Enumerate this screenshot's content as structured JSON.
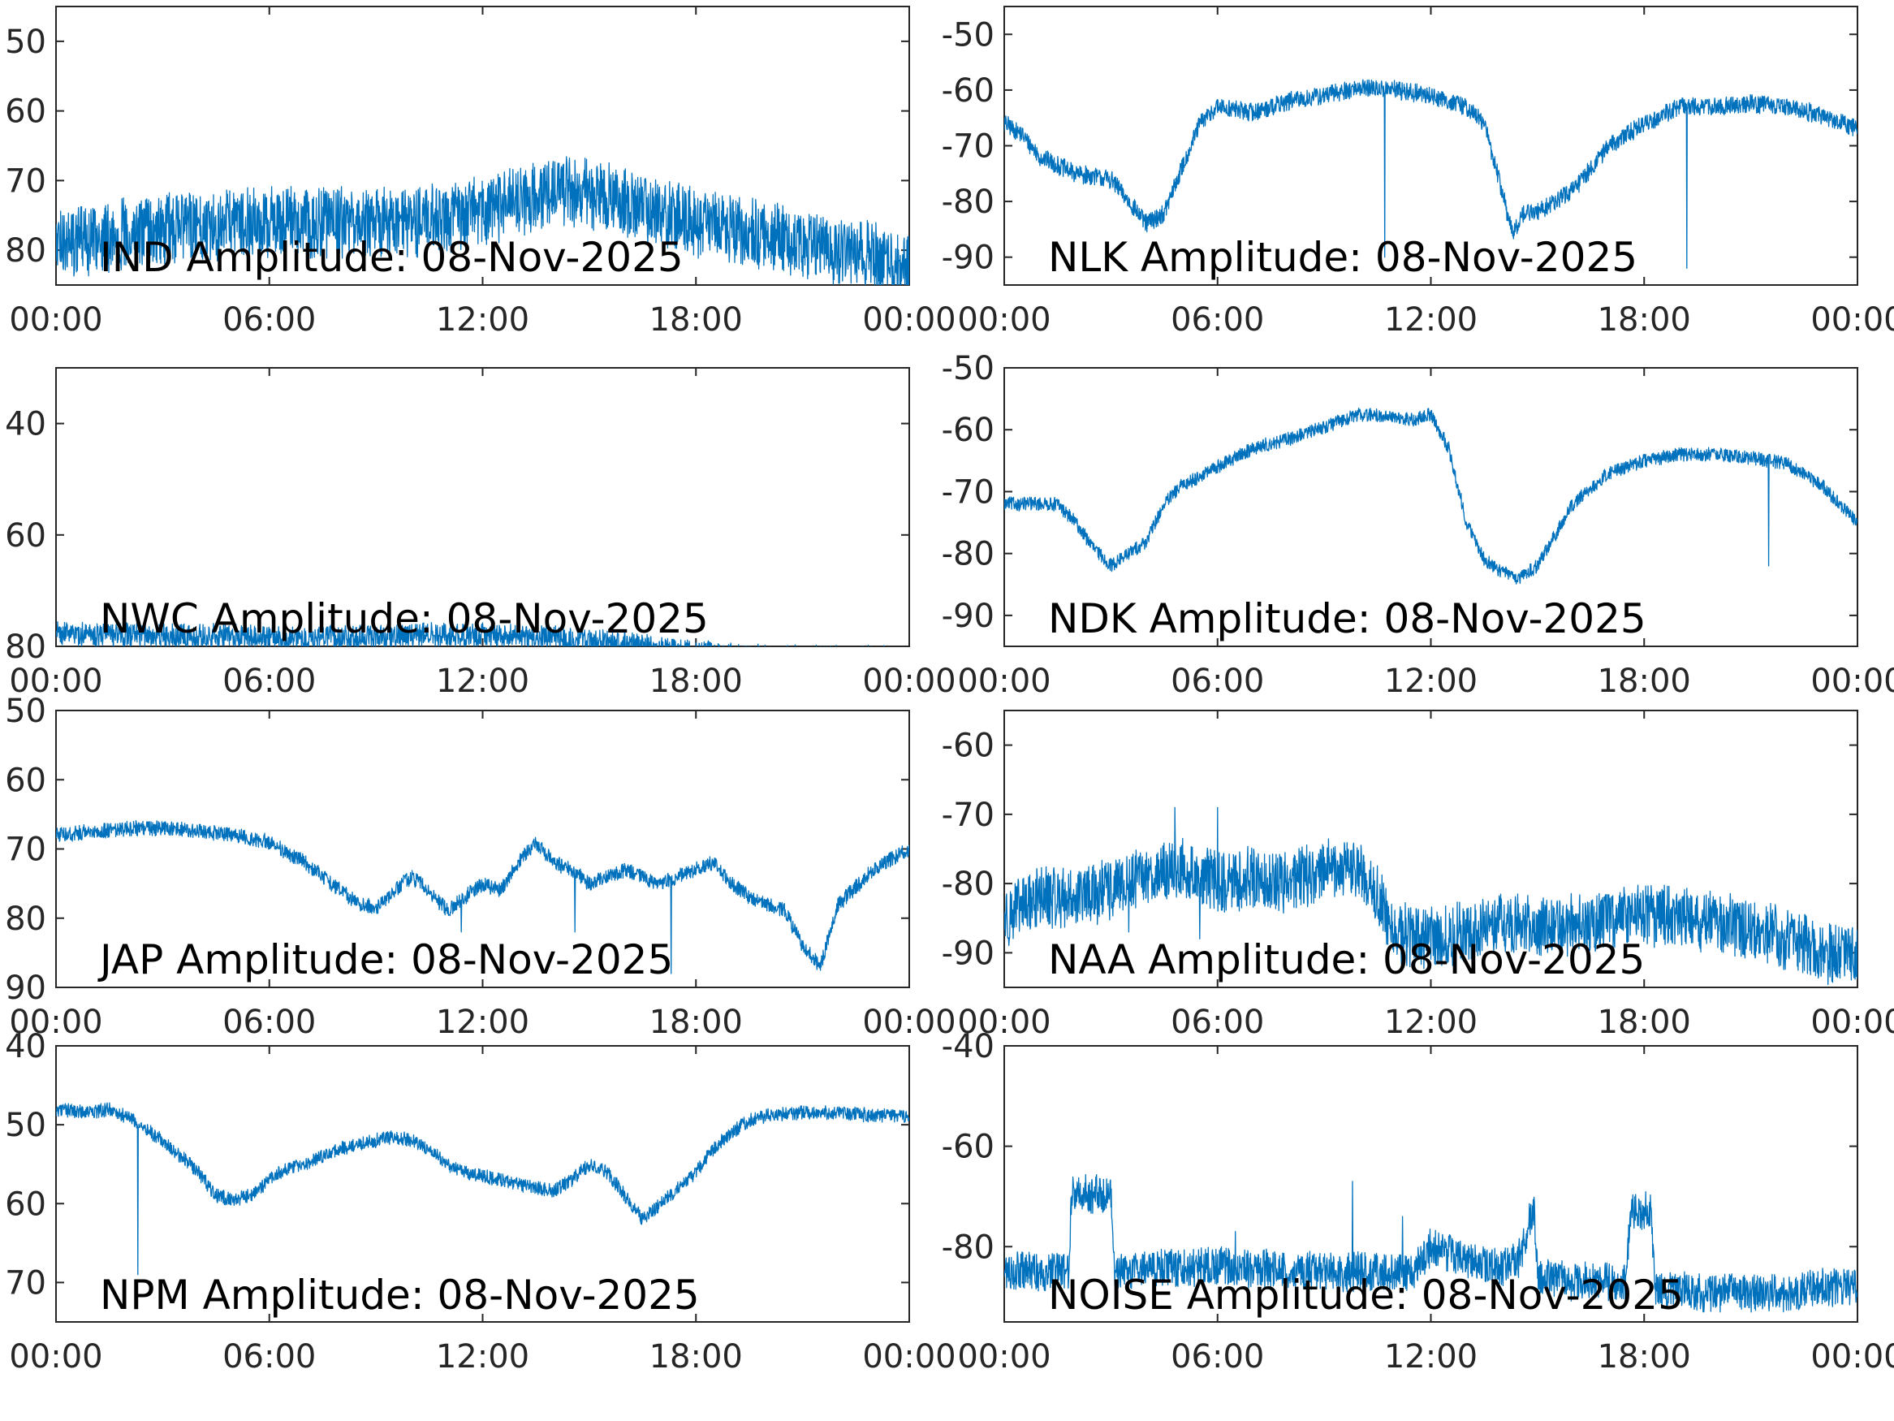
{
  "figure": {
    "trace_color": "#0072BD",
    "axis_color": "#262626"
  },
  "chart_data": [
    {
      "type": "line",
      "label": "IND Amplitude: 08-Nov-2025",
      "x_ticks": [
        "00:00",
        "06:00",
        "12:00",
        "18:00",
        "00:00"
      ],
      "y_ticks": [
        50,
        60,
        70,
        80
      ],
      "ylim": [
        45,
        85
      ],
      "y_inverted": true,
      "tick_sign": "",
      "noise": 9,
      "x": [
        0,
        1,
        2,
        3,
        4,
        6,
        8,
        10,
        12,
        13,
        14,
        14.5,
        15,
        16,
        17,
        18,
        19,
        20,
        21,
        22,
        23,
        23.5,
        24
      ],
      "y": [
        79,
        78.5,
        77.5,
        77,
        76.5,
        76,
        76,
        76,
        74.5,
        73,
        72,
        71.5,
        72,
        73,
        75,
        76,
        77,
        78,
        79,
        80,
        81,
        82,
        83
      ]
    },
    {
      "type": "line",
      "label": "NLK Amplitude: 08-Nov-2025",
      "x_ticks": [
        "00:00",
        "06:00",
        "12:00",
        "18:00",
        "00:00"
      ],
      "y_ticks": [
        -50,
        -60,
        -70,
        -80,
        -90
      ],
      "ylim": [
        -45,
        -95
      ],
      "y_inverted": false,
      "tick_sign": "",
      "noise": 3,
      "spikes": [
        [
          10.7,
          -90
        ],
        [
          19.2,
          -92
        ]
      ],
      "x": [
        0,
        0.5,
        1,
        2,
        3,
        3.5,
        4,
        4.5,
        5,
        5.5,
        6,
        7,
        8,
        9,
        10,
        11,
        12,
        13,
        13.5,
        14,
        14.3,
        14.6,
        15,
        16,
        17,
        18,
        19,
        20,
        21,
        22,
        23,
        24
      ],
      "y": [
        -66,
        -68,
        -72,
        -75,
        -76,
        -80,
        -84,
        -82,
        -74,
        -66,
        -63,
        -64,
        -62,
        -61,
        -59.5,
        -60,
        -61,
        -63,
        -66,
        -78,
        -86,
        -82,
        -82,
        -78,
        -70,
        -66,
        -63,
        -63,
        -62.5,
        -63,
        -64.5,
        -67
      ]
    },
    {
      "type": "line",
      "label": "NWC Amplitude: 08-Nov-2025",
      "x_ticks": [
        "00:00",
        "06:00",
        "12:00",
        "18:00",
        "00:00"
      ],
      "y_ticks": [
        40,
        60,
        80
      ],
      "ylim": [
        30,
        80
      ],
      "y_inverted": true,
      "tick_sign": "",
      "noise": 4,
      "clip": true,
      "x": [
        0,
        2,
        4,
        6,
        8,
        10,
        12,
        14,
        15,
        16,
        17,
        18,
        20,
        22,
        24
      ],
      "y": [
        77.5,
        78,
        78,
        78.5,
        78.5,
        78,
        78,
        78.5,
        79,
        79.5,
        80.5,
        81,
        82,
        82,
        82
      ]
    },
    {
      "type": "line",
      "label": "NDK Amplitude: 08-Nov-2025",
      "x_ticks": [
        "00:00",
        "06:00",
        "12:00",
        "18:00",
        "00:00"
      ],
      "y_ticks": [
        -50,
        -60,
        -70,
        -80,
        -90
      ],
      "ylim": [
        -50,
        -95
      ],
      "y_inverted": false,
      "tick_sign": "",
      "noise": 2,
      "spikes": [
        [
          21.5,
          -82
        ]
      ],
      "x": [
        0,
        1,
        1.5,
        2,
        2.5,
        3,
        3.5,
        4,
        4.5,
        5,
        6,
        7,
        8,
        9,
        10,
        11,
        11.5,
        12,
        12.5,
        13,
        13.5,
        14,
        14.5,
        15,
        15.5,
        16,
        17,
        18,
        19,
        20,
        21,
        22,
        23,
        23.5,
        24
      ],
      "y": [
        -72,
        -72,
        -72,
        -75,
        -79,
        -82,
        -80,
        -78,
        -72,
        -69,
        -66,
        -63,
        -61.5,
        -59.5,
        -57.5,
        -58,
        -58.5,
        -57.5,
        -63,
        -75,
        -81,
        -83,
        -84,
        -82,
        -77,
        -72,
        -67,
        -65,
        -64,
        -64,
        -64.5,
        -65.5,
        -69,
        -72,
        -75
      ]
    },
    {
      "type": "line",
      "label": "JAP Amplitude: 08-Nov-2025",
      "x_ticks": [
        "00:00",
        "06:00",
        "12:00",
        "18:00",
        "00:00"
      ],
      "y_ticks": [
        50,
        60,
        70,
        80,
        90
      ],
      "ylim": [
        50,
        90
      ],
      "y_inverted": true,
      "tick_sign": "",
      "noise": 2,
      "spikes": [
        [
          11.4,
          82
        ],
        [
          14.6,
          82
        ],
        [
          17.3,
          88
        ]
      ],
      "x": [
        0,
        1,
        2,
        3,
        4,
        5,
        6,
        7,
        7.5,
        8,
        8.5,
        9,
        9.5,
        10,
        10.5,
        11,
        11.5,
        12,
        12.5,
        13,
        13.5,
        14,
        14.5,
        15,
        15.5,
        16,
        16.5,
        17,
        17.5,
        18,
        18.5,
        19,
        19.5,
        20,
        20.5,
        21,
        21.5,
        22,
        23,
        24
      ],
      "y": [
        68,
        67.5,
        67,
        67,
        67.5,
        68,
        69,
        72,
        74,
        76,
        78,
        78.5,
        76,
        74,
        76,
        79,
        77,
        75,
        76,
        72,
        69,
        72,
        73,
        75,
        74,
        73,
        74,
        75,
        74,
        73,
        72,
        75,
        77,
        78,
        79,
        84,
        87,
        78,
        73,
        70
      ]
    },
    {
      "type": "line",
      "label": "NAA Amplitude: 08-Nov-2025",
      "x_ticks": [
        "00:00",
        "06:00",
        "12:00",
        "18:00",
        "00:00"
      ],
      "y_ticks": [
        -60,
        -70,
        -80,
        -90
      ],
      "ylim": [
        -55,
        -95
      ],
      "y_inverted": false,
      "tick_sign": "",
      "noise": 8,
      "clip": true,
      "spikes": [
        [
          4.8,
          -69
        ],
        [
          6.0,
          -69
        ],
        [
          5.5,
          -88
        ],
        [
          3.5,
          -87
        ]
      ],
      "x": [
        0,
        1,
        2,
        3,
        4,
        5,
        6,
        7,
        8,
        9,
        10,
        10.5,
        11,
        12,
        13,
        14,
        16,
        18,
        20,
        21,
        22,
        23,
        24
      ],
      "y": [
        -85,
        -82,
        -82,
        -81,
        -79,
        -78,
        -80,
        -79,
        -80,
        -78,
        -78,
        -82,
        -87,
        -88,
        -87,
        -86,
        -86,
        -84.5,
        -85.5,
        -86.5,
        -88,
        -90,
        -90
      ]
    },
    {
      "type": "line",
      "label": "NPM Amplitude: 08-Nov-2025",
      "x_ticks": [
        "00:00",
        "06:00",
        "12:00",
        "18:00",
        "00:00"
      ],
      "y_ticks": [
        40,
        50,
        60,
        70
      ],
      "ylim": [
        40,
        75
      ],
      "y_inverted": true,
      "tick_sign": "",
      "noise": 1.6,
      "spikes": [
        [
          2.3,
          69
        ]
      ],
      "x": [
        0,
        1,
        1.5,
        2,
        2.5,
        3,
        3.5,
        4,
        4.5,
        5,
        5.5,
        6,
        6.5,
        7,
        7.5,
        8,
        8.5,
        9,
        9.5,
        10,
        10.5,
        11,
        11.5,
        12,
        12.5,
        13,
        13.5,
        14,
        14.5,
        15,
        15.5,
        16,
        16.5,
        17,
        17.5,
        18,
        18.5,
        19,
        19.5,
        20,
        21,
        22,
        23,
        24
      ],
      "y": [
        48,
        48.5,
        48,
        49,
        50.5,
        52,
        54,
        56,
        59,
        59.5,
        59,
        57,
        55.5,
        55,
        54,
        53,
        52.5,
        52,
        51.5,
        52,
        53,
        55,
        56,
        56.5,
        57,
        57.5,
        58,
        58.5,
        57,
        55,
        56,
        59,
        62,
        60,
        58,
        56,
        53,
        51,
        49.5,
        48.8,
        48.5,
        48.5,
        48.8,
        49
      ]
    },
    {
      "type": "line",
      "label": "NOISE Amplitude: 08-Nov-2025",
      "x_ticks": [
        "00:00",
        "06:00",
        "12:00",
        "18:00",
        "00:00"
      ],
      "y_ticks": [
        -40,
        -60,
        -80
      ],
      "ylim": [
        -40,
        -95
      ],
      "y_inverted": false,
      "tick_sign": "",
      "noise": 7,
      "clip": true,
      "spikes": [
        [
          6.5,
          -77
        ],
        [
          9.8,
          -67
        ],
        [
          11.2,
          -74
        ],
        [
          13.5,
          -82
        ]
      ],
      "x": [
        0,
        1,
        1.8,
        1.9,
        2.5,
        3,
        3.1,
        4,
        5,
        6,
        7,
        8,
        9,
        10,
        11,
        11.5,
        12,
        13,
        14,
        14.5,
        14.9,
        15,
        16,
        17,
        17.5,
        17.6,
        18.2,
        18.3,
        19,
        20,
        21,
        22,
        23,
        24
      ],
      "y": [
        -85,
        -85,
        -85,
        -69.5,
        -69.5,
        -69.5,
        -85,
        -84,
        -84,
        -84,
        -84.5,
        -84.5,
        -85,
        -85,
        -85,
        -85,
        -80,
        -83,
        -84,
        -82,
        -72,
        -86,
        -87,
        -87,
        -87,
        -73,
        -73,
        -88,
        -89,
        -89,
        -89.5,
        -89.5,
        -88,
        -88
      ]
    }
  ]
}
